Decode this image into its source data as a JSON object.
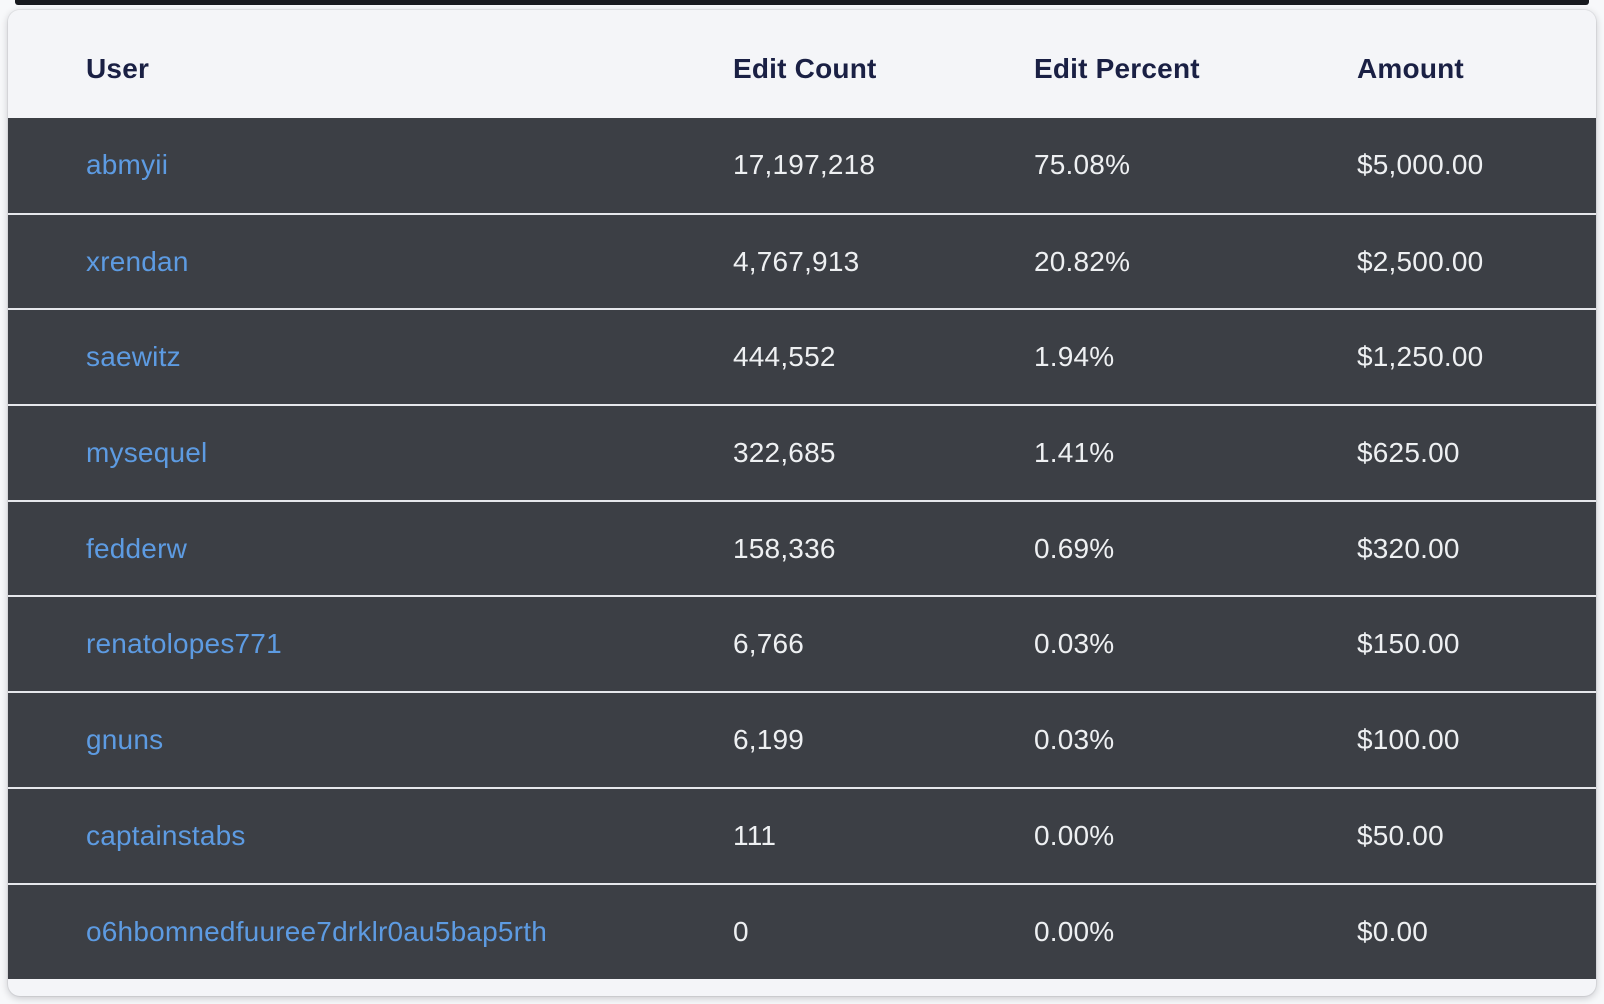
{
  "colors": {
    "page_bg": "#f7f8fa",
    "top_strip": "#17191e",
    "header_bg": "#f4f5f8",
    "header_text": "#1a2044",
    "row_bg": "#3c3f45",
    "separator": "#e6e7eb",
    "body_text": "#eef0f2",
    "link_blue": "#5d9be2",
    "amount_green": "#4ecb7d"
  },
  "table": {
    "columns": [
      {
        "key": "user",
        "label": "User"
      },
      {
        "key": "edit_count",
        "label": "Edit Count"
      },
      {
        "key": "edit_percent",
        "label": "Edit Percent"
      },
      {
        "key": "amount",
        "label": "Amount"
      }
    ],
    "rows": [
      {
        "user": "abmyii",
        "edit_count": "17,197,218",
        "edit_percent": "75.08%",
        "amount": "$5,000.00"
      },
      {
        "user": "xrendan",
        "edit_count": "4,767,913",
        "edit_percent": "20.82%",
        "amount": "$2,500.00"
      },
      {
        "user": "saewitz",
        "edit_count": "444,552",
        "edit_percent": "1.94%",
        "amount": "$1,250.00"
      },
      {
        "user": "mysequel",
        "edit_count": "322,685",
        "edit_percent": "1.41%",
        "amount": "$625.00"
      },
      {
        "user": "fedderw",
        "edit_count": "158,336",
        "edit_percent": "0.69%",
        "amount": "$320.00"
      },
      {
        "user": "renatolopes771",
        "edit_count": "6,766",
        "edit_percent": "0.03%",
        "amount": "$150.00"
      },
      {
        "user": "gnuns",
        "edit_count": "6,199",
        "edit_percent": "0.03%",
        "amount": "$100.00"
      },
      {
        "user": "captainstabs",
        "edit_count": "111",
        "edit_percent": "0.00%",
        "amount": "$50.00"
      },
      {
        "user": "o6hbomnedfuuree7drklr0au5bap5rth",
        "edit_count": "0",
        "edit_percent": "0.00%",
        "amount": "$0.00"
      }
    ]
  }
}
